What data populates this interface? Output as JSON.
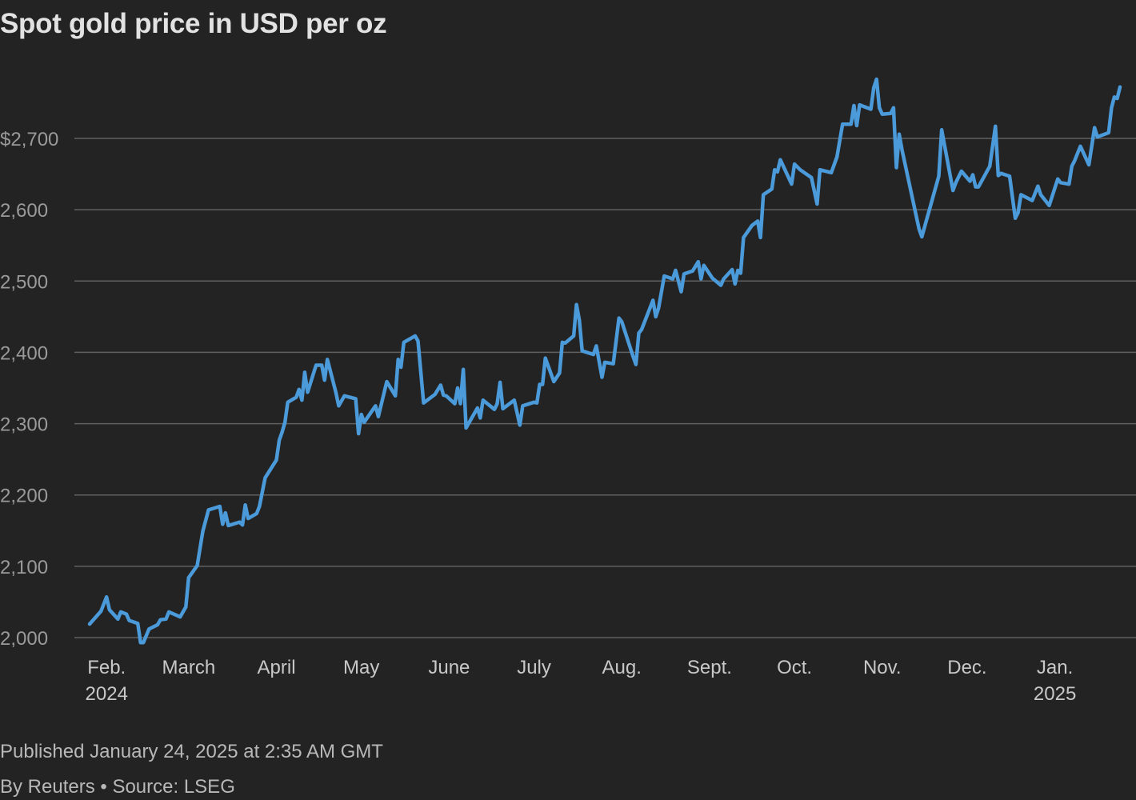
{
  "title": "Spot gold price in USD per oz",
  "footer": {
    "published": "Published January 24, 2025 at 2:35 AM GMT",
    "byline": "By Reuters • Source: LSEG"
  },
  "colors": {
    "background": "#232323",
    "line": "#4b9ada",
    "grid": "#616161",
    "tick_text": "#9a9a9a",
    "month_text": "#c8c8c8"
  },
  "chart_data": {
    "type": "line",
    "title": "Spot gold price in USD per oz",
    "xlabel": "",
    "ylabel": "",
    "ylim": [
      2000,
      2800
    ],
    "xlim": [
      "2024-01-26",
      "2025-01-24"
    ],
    "grid": "horizontal",
    "y_ticks": [
      {
        "value": 2000,
        "label": "2,000"
      },
      {
        "value": 2100,
        "label": "2,100"
      },
      {
        "value": 2200,
        "label": "2,200"
      },
      {
        "value": 2300,
        "label": "2,300"
      },
      {
        "value": 2400,
        "label": "2,400"
      },
      {
        "value": 2500,
        "label": "2,500"
      },
      {
        "value": 2600,
        "label": "2,600"
      },
      {
        "value": 2700,
        "label": "$2,700"
      }
    ],
    "x_ticks": [
      {
        "date": "2024-02-01",
        "label": "Feb.",
        "year": "2024"
      },
      {
        "date": "2024-03-01",
        "label": "March"
      },
      {
        "date": "2024-04-01",
        "label": "April"
      },
      {
        "date": "2024-05-01",
        "label": "May"
      },
      {
        "date": "2024-06-01",
        "label": "June"
      },
      {
        "date": "2024-07-01",
        "label": "July"
      },
      {
        "date": "2024-08-01",
        "label": "Aug."
      },
      {
        "date": "2024-09-01",
        "label": "Sept."
      },
      {
        "date": "2024-10-01",
        "label": "Oct."
      },
      {
        "date": "2024-11-01",
        "label": "Nov."
      },
      {
        "date": "2024-12-01",
        "label": "Dec."
      },
      {
        "date": "2025-01-01",
        "label": "Jan.",
        "year": "2025"
      }
    ],
    "series": [
      {
        "points": [
          [
            "2024-01-26",
            2019
          ],
          [
            "2024-01-30",
            2037
          ],
          [
            "2024-02-01",
            2057
          ],
          [
            "2024-02-02",
            2039
          ],
          [
            "2024-02-05",
            2026
          ],
          [
            "2024-02-06",
            2036
          ],
          [
            "2024-02-08",
            2033
          ],
          [
            "2024-02-09",
            2024
          ],
          [
            "2024-02-12",
            2020
          ],
          [
            "2024-02-13",
            1993
          ],
          [
            "2024-02-14",
            1993
          ],
          [
            "2024-02-16",
            2012
          ],
          [
            "2024-02-19",
            2018
          ],
          [
            "2024-02-20",
            2025
          ],
          [
            "2024-02-22",
            2026
          ],
          [
            "2024-02-23",
            2036
          ],
          [
            "2024-02-27",
            2029
          ],
          [
            "2024-02-29",
            2043
          ],
          [
            "2024-03-01",
            2084
          ],
          [
            "2024-03-04",
            2101
          ],
          [
            "2024-03-05",
            2125
          ],
          [
            "2024-03-06",
            2149
          ],
          [
            "2024-03-08",
            2179
          ],
          [
            "2024-03-12",
            2184
          ],
          [
            "2024-03-13",
            2159
          ],
          [
            "2024-03-14",
            2175
          ],
          [
            "2024-03-15",
            2157
          ],
          [
            "2024-03-19",
            2162
          ],
          [
            "2024-03-20",
            2158
          ],
          [
            "2024-03-21",
            2186
          ],
          [
            "2024-03-22",
            2167
          ],
          [
            "2024-03-25",
            2174
          ],
          [
            "2024-03-26",
            2184
          ],
          [
            "2024-03-28",
            2224
          ],
          [
            "2024-04-01",
            2249
          ],
          [
            "2024-04-02",
            2277
          ],
          [
            "2024-04-03",
            2288
          ],
          [
            "2024-04-04",
            2302
          ],
          [
            "2024-04-05",
            2330
          ],
          [
            "2024-04-08",
            2337
          ],
          [
            "2024-04-09",
            2348
          ],
          [
            "2024-04-10",
            2333
          ],
          [
            "2024-04-11",
            2372
          ],
          [
            "2024-04-12",
            2344
          ],
          [
            "2024-04-15",
            2382
          ],
          [
            "2024-04-17",
            2382
          ],
          [
            "2024-04-18",
            2361
          ],
          [
            "2024-04-19",
            2390
          ],
          [
            "2024-04-22",
            2344
          ],
          [
            "2024-04-23",
            2325
          ],
          [
            "2024-04-25",
            2339
          ],
          [
            "2024-04-29",
            2335
          ],
          [
            "2024-04-30",
            2286
          ],
          [
            "2024-05-01",
            2313
          ],
          [
            "2024-05-02",
            2302
          ],
          [
            "2024-05-06",
            2325
          ],
          [
            "2024-05-07",
            2310
          ],
          [
            "2024-05-10",
            2359
          ],
          [
            "2024-05-13",
            2339
          ],
          [
            "2024-05-14",
            2390
          ],
          [
            "2024-05-15",
            2379
          ],
          [
            "2024-05-16",
            2414
          ],
          [
            "2024-05-20",
            2423
          ],
          [
            "2024-05-21",
            2416
          ],
          [
            "2024-05-23",
            2329
          ],
          [
            "2024-05-27",
            2341
          ],
          [
            "2024-05-29",
            2354
          ],
          [
            "2024-05-30",
            2340
          ],
          [
            "2024-05-31",
            2339
          ],
          [
            "2024-06-03",
            2328
          ],
          [
            "2024-06-04",
            2350
          ],
          [
            "2024-06-05",
            2328
          ],
          [
            "2024-06-06",
            2376
          ],
          [
            "2024-06-07",
            2294
          ],
          [
            "2024-06-11",
            2322
          ],
          [
            "2024-06-12",
            2308
          ],
          [
            "2024-06-13",
            2333
          ],
          [
            "2024-06-17",
            2320
          ],
          [
            "2024-06-18",
            2328
          ],
          [
            "2024-06-19",
            2358
          ],
          [
            "2024-06-20",
            2321
          ],
          [
            "2024-06-24",
            2333
          ],
          [
            "2024-06-26",
            2298
          ],
          [
            "2024-06-27",
            2325
          ],
          [
            "2024-07-01",
            2330
          ],
          [
            "2024-07-02",
            2329
          ],
          [
            "2024-07-03",
            2355
          ],
          [
            "2024-07-04",
            2355
          ],
          [
            "2024-07-05",
            2392
          ],
          [
            "2024-07-08",
            2359
          ],
          [
            "2024-07-10",
            2371
          ],
          [
            "2024-07-11",
            2414
          ],
          [
            "2024-07-12",
            2413
          ],
          [
            "2024-07-15",
            2423
          ],
          [
            "2024-07-16",
            2467
          ],
          [
            "2024-07-17",
            2445
          ],
          [
            "2024-07-18",
            2402
          ],
          [
            "2024-07-22",
            2397
          ],
          [
            "2024-07-23",
            2409
          ],
          [
            "2024-07-25",
            2365
          ],
          [
            "2024-07-26",
            2386
          ],
          [
            "2024-07-29",
            2384
          ],
          [
            "2024-07-31",
            2448
          ],
          [
            "2024-08-01",
            2443
          ],
          [
            "2024-08-05",
            2394
          ],
          [
            "2024-08-06",
            2383
          ],
          [
            "2024-08-07",
            2427
          ],
          [
            "2024-08-08",
            2432
          ],
          [
            "2024-08-12",
            2473
          ],
          [
            "2024-08-13",
            2450
          ],
          [
            "2024-08-14",
            2462
          ],
          [
            "2024-08-16",
            2507
          ],
          [
            "2024-08-19",
            2503
          ],
          [
            "2024-08-20",
            2515
          ],
          [
            "2024-08-22",
            2485
          ],
          [
            "2024-08-23",
            2510
          ],
          [
            "2024-08-26",
            2514
          ],
          [
            "2024-08-28",
            2527
          ],
          [
            "2024-08-29",
            2503
          ],
          [
            "2024-08-30",
            2522
          ],
          [
            "2024-09-02",
            2504
          ],
          [
            "2024-09-05",
            2494
          ],
          [
            "2024-09-06",
            2503
          ],
          [
            "2024-09-09",
            2516
          ],
          [
            "2024-09-10",
            2496
          ],
          [
            "2024-09-11",
            2515
          ],
          [
            "2024-09-12",
            2511
          ],
          [
            "2024-09-13",
            2561
          ],
          [
            "2024-09-16",
            2578
          ],
          [
            "2024-09-18",
            2584
          ],
          [
            "2024-09-19",
            2561
          ],
          [
            "2024-09-20",
            2621
          ],
          [
            "2024-09-23",
            2629
          ],
          [
            "2024-09-24",
            2656
          ],
          [
            "2024-09-25",
            2653
          ],
          [
            "2024-09-26",
            2670
          ],
          [
            "2024-09-30",
            2636
          ],
          [
            "2024-10-01",
            2664
          ],
          [
            "2024-10-03",
            2656
          ],
          [
            "2024-10-07",
            2645
          ],
          [
            "2024-10-09",
            2608
          ],
          [
            "2024-10-10",
            2656
          ],
          [
            "2024-10-14",
            2652
          ],
          [
            "2024-10-16",
            2674
          ],
          [
            "2024-10-18",
            2720
          ],
          [
            "2024-10-21",
            2720
          ],
          [
            "2024-10-22",
            2746
          ],
          [
            "2024-10-23",
            2718
          ],
          [
            "2024-10-24",
            2747
          ],
          [
            "2024-10-28",
            2741
          ],
          [
            "2024-10-29",
            2771
          ],
          [
            "2024-10-30",
            2783
          ],
          [
            "2024-10-31",
            2743
          ],
          [
            "2024-11-01",
            2734
          ],
          [
            "2024-11-04",
            2735
          ],
          [
            "2024-11-05",
            2743
          ],
          [
            "2024-11-06",
            2659
          ],
          [
            "2024-11-07",
            2706
          ],
          [
            "2024-11-08",
            2684
          ],
          [
            "2024-11-14",
            2573
          ],
          [
            "2024-11-15",
            2562
          ],
          [
            "2024-11-21",
            2647
          ],
          [
            "2024-11-22",
            2712
          ],
          [
            "2024-11-26",
            2627
          ],
          [
            "2024-11-27",
            2638
          ],
          [
            "2024-11-29",
            2654
          ],
          [
            "2024-12-02",
            2640
          ],
          [
            "2024-12-03",
            2649
          ],
          [
            "2024-12-04",
            2632
          ],
          [
            "2024-12-05",
            2632
          ],
          [
            "2024-12-09",
            2661
          ],
          [
            "2024-12-11",
            2717
          ],
          [
            "2024-12-12",
            2648
          ],
          [
            "2024-12-13",
            2651
          ],
          [
            "2024-12-16",
            2647
          ],
          [
            "2024-12-18",
            2588
          ],
          [
            "2024-12-19",
            2596
          ],
          [
            "2024-12-20",
            2621
          ],
          [
            "2024-12-24",
            2613
          ],
          [
            "2024-12-26",
            2633
          ],
          [
            "2024-12-27",
            2621
          ],
          [
            "2024-12-30",
            2606
          ],
          [
            "2025-01-02",
            2643
          ],
          [
            "2025-01-03",
            2638
          ],
          [
            "2025-01-06",
            2636
          ],
          [
            "2025-01-07",
            2661
          ],
          [
            "2025-01-08",
            2669
          ],
          [
            "2025-01-10",
            2689
          ],
          [
            "2025-01-13",
            2663
          ],
          [
            "2025-01-15",
            2715
          ],
          [
            "2025-01-16",
            2702
          ],
          [
            "2025-01-20",
            2708
          ],
          [
            "2025-01-21",
            2743
          ],
          [
            "2025-01-22",
            2758
          ],
          [
            "2025-01-23",
            2756
          ],
          [
            "2025-01-24",
            2772
          ]
        ]
      }
    ]
  }
}
